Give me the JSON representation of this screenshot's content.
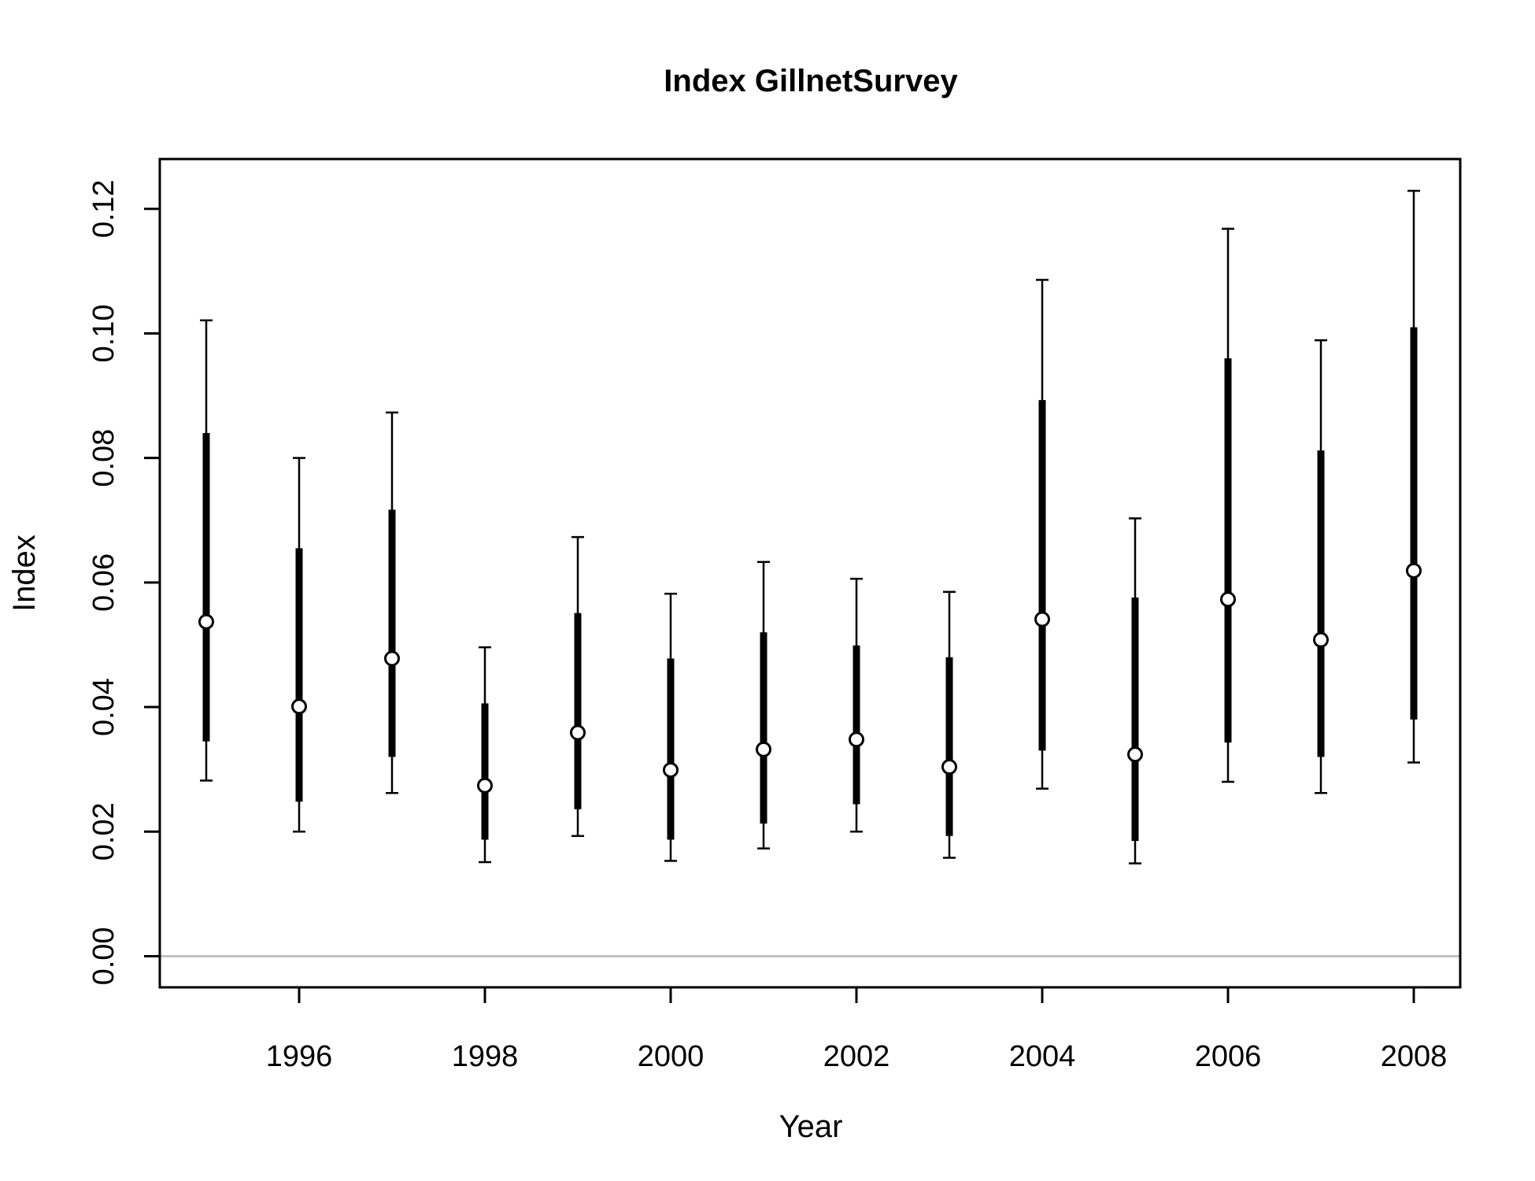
{
  "chart_data": {
    "type": "errorbar",
    "title": "Index GillnetSurvey",
    "xlabel": "Year",
    "ylabel": "Index",
    "xlim": [
      1994.5,
      2008.5
    ],
    "ylim": [
      -0.005,
      0.128
    ],
    "x_ticks": [
      "1996",
      "1998",
      "2000",
      "2002",
      "2004",
      "2006",
      "2008"
    ],
    "x_tick_values": [
      1996,
      1998,
      2000,
      2002,
      2004,
      2006,
      2008
    ],
    "y_ticks": [
      "0.00",
      "0.02",
      "0.04",
      "0.06",
      "0.08",
      "0.10",
      "0.12"
    ],
    "y_tick_values": [
      0.0,
      0.02,
      0.04,
      0.06,
      0.08,
      0.1,
      0.12
    ],
    "reference_line": {
      "y": 0.0,
      "color": "#c0c0c0"
    },
    "series_color": "#000000",
    "points": [
      {
        "year": 1995,
        "index": 0.0537,
        "inner_low": 0.0345,
        "inner_high": 0.084,
        "outer_low": 0.0282,
        "outer_high": 0.1021
      },
      {
        "year": 1996,
        "index": 0.0401,
        "inner_low": 0.0248,
        "inner_high": 0.0655,
        "outer_low": 0.02,
        "outer_high": 0.08
      },
      {
        "year": 1997,
        "index": 0.0478,
        "inner_low": 0.032,
        "inner_high": 0.0717,
        "outer_low": 0.0262,
        "outer_high": 0.0873
      },
      {
        "year": 1998,
        "index": 0.0274,
        "inner_low": 0.0187,
        "inner_high": 0.0406,
        "outer_low": 0.0151,
        "outer_high": 0.0496
      },
      {
        "year": 1999,
        "index": 0.0359,
        "inner_low": 0.0236,
        "inner_high": 0.0551,
        "outer_low": 0.0193,
        "outer_high": 0.0673
      },
      {
        "year": 2000,
        "index": 0.0299,
        "inner_low": 0.0187,
        "inner_high": 0.0478,
        "outer_low": 0.0153,
        "outer_high": 0.0582
      },
      {
        "year": 2001,
        "index": 0.0332,
        "inner_low": 0.0213,
        "inner_high": 0.052,
        "outer_low": 0.0173,
        "outer_high": 0.0633
      },
      {
        "year": 2002,
        "index": 0.0348,
        "inner_low": 0.0244,
        "inner_high": 0.0499,
        "outer_low": 0.02,
        "outer_high": 0.0606
      },
      {
        "year": 2003,
        "index": 0.0304,
        "inner_low": 0.0193,
        "inner_high": 0.048,
        "outer_low": 0.0158,
        "outer_high": 0.0585
      },
      {
        "year": 2004,
        "index": 0.0541,
        "inner_low": 0.033,
        "inner_high": 0.0893,
        "outer_low": 0.0269,
        "outer_high": 0.1086
      },
      {
        "year": 2005,
        "index": 0.0324,
        "inner_low": 0.0185,
        "inner_high": 0.0576,
        "outer_low": 0.0149,
        "outer_high": 0.0703
      },
      {
        "year": 2006,
        "index": 0.0573,
        "inner_low": 0.0343,
        "inner_high": 0.096,
        "outer_low": 0.028,
        "outer_high": 0.1168
      },
      {
        "year": 2007,
        "index": 0.0508,
        "inner_low": 0.032,
        "inner_high": 0.0812,
        "outer_low": 0.0262,
        "outer_high": 0.0989
      },
      {
        "year": 2008,
        "index": 0.0619,
        "inner_low": 0.038,
        "inner_high": 0.101,
        "outer_low": 0.0311,
        "outer_high": 0.1229
      }
    ]
  }
}
